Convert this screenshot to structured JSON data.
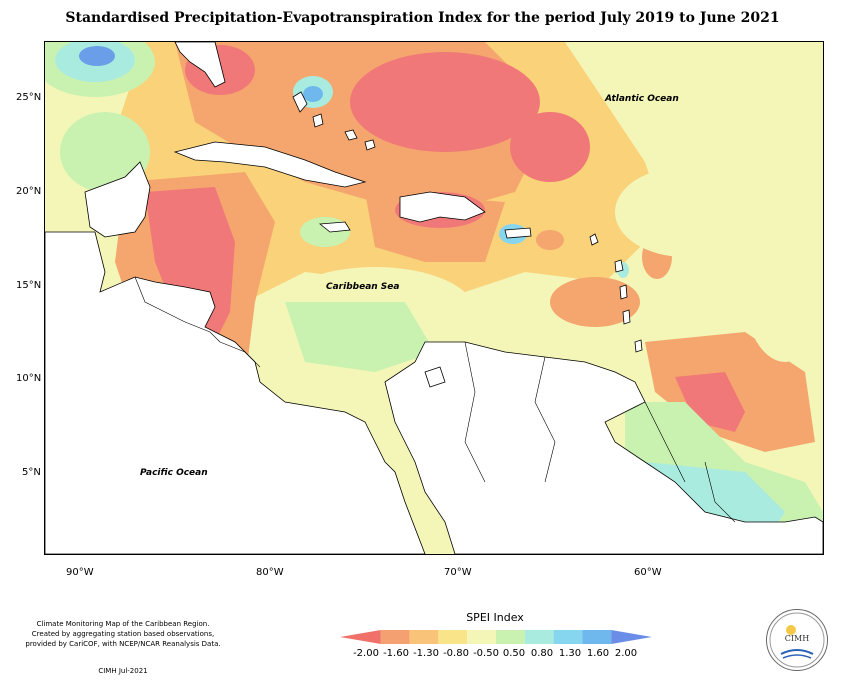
{
  "title": "Standardised Precipitation-Evapotranspiration Index for the period July 2019 to June 2021",
  "map": {
    "labels": {
      "atlantic": "Atlantic Ocean",
      "caribbean": "Caribbean Sea",
      "pacific": "Pacific Ocean"
    },
    "lat_ticks": [
      "25°N",
      "20°N",
      "15°N",
      "10°N",
      "5°N"
    ],
    "lon_ticks": [
      "90°W",
      "80°W",
      "70°W",
      "60°W"
    ],
    "colors": {
      "very_dry": "#f07878",
      "dry": "#f5a66e",
      "mod_dry": "#f9d27a",
      "near_normal": "#f4f6b8",
      "mild_wet": "#c9f2b0",
      "wet": "#a9ecdf",
      "very_wet": "#87d6f0",
      "extreme_wet": "#6a9ee8",
      "land": "#ffffff"
    }
  },
  "footer": {
    "lines": [
      "Climate Monitoring Map of the Caribbean Region.",
      "Created by aggregating station based observations,",
      "provided by CariCOF, with NCEP/NCAR Reanalysis Data."
    ],
    "org": "CIMH Jul-2021"
  },
  "legend": {
    "title": "SPEI Index",
    "ticks": [
      "-2.00",
      "-1.60",
      "-1.30",
      "-0.80",
      "-0.50",
      "0.50",
      "0.80",
      "1.30",
      "1.60",
      "2.00"
    ],
    "colors": [
      "#f0706a",
      "#f5a070",
      "#f9c47a",
      "#f9e48a",
      "#f4f6b8",
      "#c9f2b0",
      "#a9ecdf",
      "#87d6f0",
      "#6fb8ee",
      "#6a8ee8"
    ]
  },
  "logo": {
    "text": "CIMH"
  }
}
